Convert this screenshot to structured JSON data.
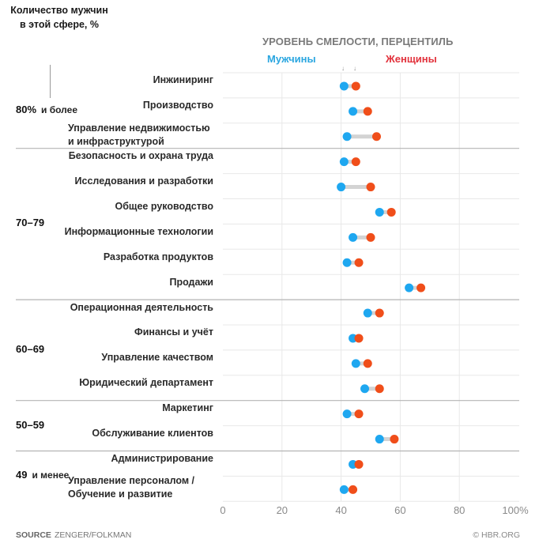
{
  "header": {
    "left_title_line1": "Количество мужчин",
    "left_title_line2": "в этой сфере, %",
    "axis_title": "УРОВЕНЬ СМЕЛОСТИ, ПЕРЦЕНТИЛЬ",
    "legend_men": "Мужчины",
    "legend_women": "Женщины",
    "arrow_glyph": "↓"
  },
  "colors": {
    "men": "#1ea7f0",
    "women": "#f04e1a",
    "men_label": "#2aa6e0",
    "women_label": "#e2323c",
    "connector": "#d3d3d3",
    "grid": "#e8e8e8",
    "group_divider": "#b4b4b4"
  },
  "groups": [
    {
      "label": "80%",
      "sub": "и более"
    },
    {
      "label": "70–79",
      "sub": ""
    },
    {
      "label": "60–69",
      "sub": ""
    },
    {
      "label": "50–59",
      "sub": ""
    },
    {
      "label": "49",
      "sub": "и менее"
    }
  ],
  "footer": {
    "source_label": "SOURCE",
    "source_text": "ZENGER/FOLKMAN",
    "credit": "© HBR.ORG"
  },
  "chart_data": {
    "type": "dumbbell",
    "title": "УРОВЕНЬ СМЕЛОСТИ, ПЕРЦЕНТИЛЬ",
    "xlabel": "",
    "ylabel": "Количество мужчин в этой сфере, %",
    "xlim": [
      0,
      100
    ],
    "x_ticks": [
      "0",
      "20",
      "40",
      "60",
      "80",
      "100%"
    ],
    "x_tick_values": [
      0,
      20,
      40,
      60,
      80,
      100
    ],
    "grid": true,
    "legend": [
      "Мужчины",
      "Женщины"
    ],
    "legend_position": "top",
    "series": [
      {
        "name": "Мужчины",
        "color": "#1ea7f0"
      },
      {
        "name": "Женщины",
        "color": "#f04e1a"
      }
    ],
    "rows": [
      {
        "group": 0,
        "label": [
          "Инжиниринг"
        ],
        "men": 41,
        "women": 45
      },
      {
        "group": 0,
        "label": [
          "Производство"
        ],
        "men": 44,
        "women": 49
      },
      {
        "group": 0,
        "label": [
          "Управление недвижимостью",
          "и инфраструктурой"
        ],
        "men": 42,
        "women": 52
      },
      {
        "group": 1,
        "label": [
          "Безопасность и охрана труда"
        ],
        "men": 41,
        "women": 45
      },
      {
        "group": 1,
        "label": [
          "Исследования и разработки"
        ],
        "men": 40,
        "women": 50
      },
      {
        "group": 1,
        "label": [
          "Общее руководство"
        ],
        "men": 53,
        "women": 57
      },
      {
        "group": 1,
        "label": [
          "Информационные технологии"
        ],
        "men": 44,
        "women": 50
      },
      {
        "group": 1,
        "label": [
          "Разработка продуктов"
        ],
        "men": 42,
        "women": 46
      },
      {
        "group": 1,
        "label": [
          "Продажи"
        ],
        "men": 63,
        "women": 67
      },
      {
        "group": 2,
        "label": [
          "Операционная деятельность"
        ],
        "men": 49,
        "women": 53
      },
      {
        "group": 2,
        "label": [
          "Финансы и учёт"
        ],
        "men": 44,
        "women": 46
      },
      {
        "group": 2,
        "label": [
          "Управление качеством"
        ],
        "men": 45,
        "women": 49
      },
      {
        "group": 2,
        "label": [
          "Юридический департамент"
        ],
        "men": 48,
        "women": 53
      },
      {
        "group": 3,
        "label": [
          "Маркетинг"
        ],
        "men": 42,
        "women": 46
      },
      {
        "group": 3,
        "label": [
          "Обслуживание клиентов"
        ],
        "men": 53,
        "women": 58
      },
      {
        "group": 4,
        "label": [
          "Администрирование"
        ],
        "men": 44,
        "women": 46
      },
      {
        "group": 4,
        "label": [
          "Управление персоналом /",
          "Обучение и развитие"
        ],
        "men": 41,
        "women": 44
      }
    ]
  }
}
